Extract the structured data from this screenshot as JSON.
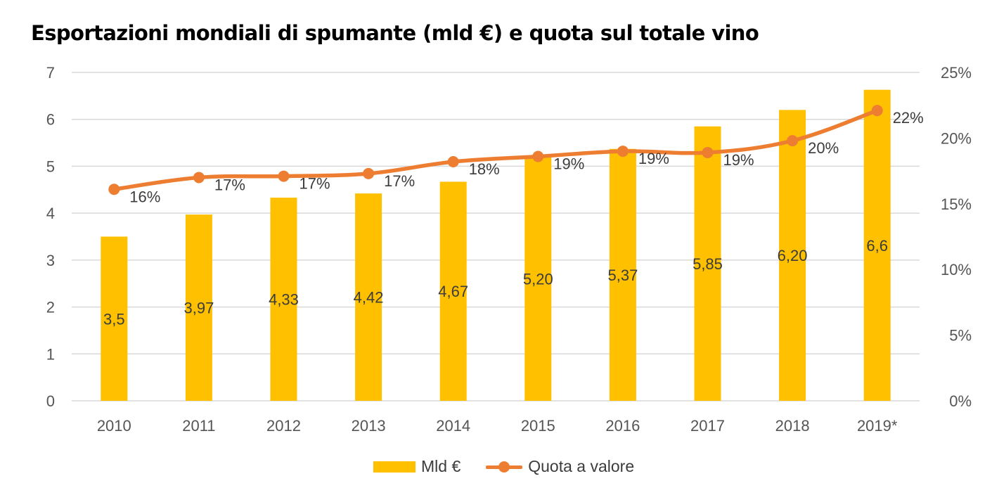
{
  "title": "Esportazioni mondiali di spumante (mld €) e quota sul totale vino",
  "colors": {
    "bar": "#FFC000",
    "line": "#ED7D31",
    "grid": "#D9D9D9"
  },
  "legend": {
    "bar_label": "Mld €",
    "line_label": "Quota a valore"
  },
  "chart_data": {
    "type": "bar",
    "title": "Esportazioni mondiali di spumante (mld €) e quota sul totale vino",
    "categories": [
      "2010",
      "2011",
      "2012",
      "2013",
      "2014",
      "2015",
      "2016",
      "2017",
      "2018",
      "2019*"
    ],
    "series": [
      {
        "name": "Mld €",
        "type": "bar",
        "axis": "left",
        "values": [
          3.5,
          3.97,
          4.33,
          4.42,
          4.67,
          5.2,
          5.37,
          5.85,
          6.2,
          6.63
        ],
        "labels": [
          "3,5",
          "3,97",
          "4,33",
          "4,42",
          "4,67",
          "5,20",
          "5,37",
          "5,85",
          "6,20",
          "6,6"
        ]
      },
      {
        "name": "Quota a valore",
        "type": "line",
        "axis": "right",
        "values": [
          16.1,
          17.0,
          17.1,
          17.3,
          18.2,
          18.6,
          19.0,
          18.9,
          19.8,
          22.1
        ],
        "labels": [
          "16%",
          "17%",
          "17%",
          "17%",
          "18%",
          "19%",
          "19%",
          "19%",
          "20%",
          "22%"
        ]
      }
    ],
    "ylim": [
      0,
      7
    ],
    "yticks": [
      "0",
      "1",
      "2",
      "3",
      "4",
      "5",
      "6",
      "7"
    ],
    "y2lim": [
      0,
      25
    ],
    "y2ticks": [
      "0%",
      "5%",
      "10%",
      "15%",
      "20%",
      "25%"
    ],
    "grid": true,
    "legend_position": "bottom"
  }
}
